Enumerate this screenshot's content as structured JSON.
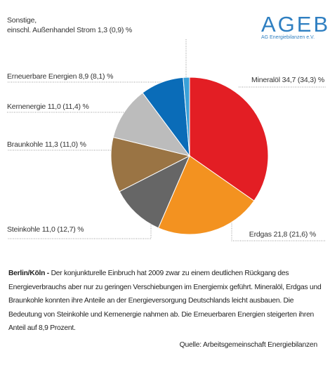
{
  "chart_data": {
    "type": "pie",
    "categories": [
      "Mineralöl",
      "Erdgas",
      "Steinkohle",
      "Braunkohle",
      "Kernenergie",
      "Erneuerbare Energien",
      "Sonstige,\neinschl. Außenhandel Strom"
    ],
    "values": [
      34.7,
      21.8,
      11.0,
      11.3,
      11.0,
      8.9,
      1.3
    ],
    "value_labels": [
      "34,7 (34,3) %",
      "21,8 (21,6) %",
      "11,0 (12,7) %",
      "11,3 (11,0) %",
      "11,0 (11,4) %",
      "8,9 (8,1) %",
      "1,3 (0,9) %"
    ],
    "colors": [
      "#e31e24",
      "#f39220",
      "#666666",
      "#9a7444",
      "#bcbcbc",
      "#0a6cb8",
      "#3aa0d8"
    ]
  },
  "logo": {
    "name": "AGEB",
    "subtitle": "AG Energiebilanzen e.V."
  },
  "text": {
    "lead": "Berlin/Köln -",
    "body": " Der konjunkturelle Einbruch hat 2009 zwar zu einem deutlichen Rückgang des Energieverbrauchs aber nur zu geringen Verschiebungen im Energiemix geführt. Mineralöl, Erdgas und Braunkohle konnten ihre Anteile an der Energieversorgung Deutschlands leicht ausbauen. Die Bedeutung von Steinkohle und Kernenergie nahmen ab. Die Erneuerbaren Energien steigerten ihren Anteil auf 8,9 Prozent.",
    "source": "Quelle:  Arbeitsgemeinschaft Energiebilanzen"
  }
}
